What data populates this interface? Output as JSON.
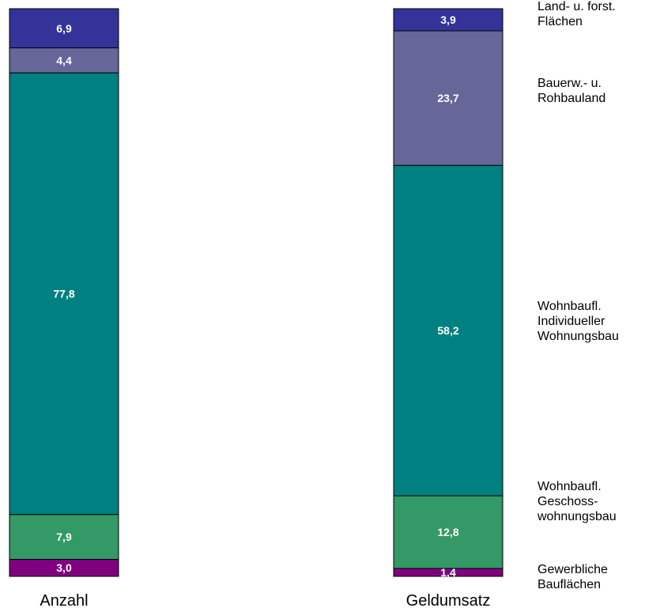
{
  "chart_data": {
    "type": "bar",
    "stacked": true,
    "normalized_to_100": true,
    "categories": [
      "Anzahl",
      "Geldumsatz"
    ],
    "series": [
      {
        "name": "Gewerbliche Bauflächen",
        "legend_lines": [
          "Gewerbliche",
          "Bauflächen"
        ],
        "color": "#800080",
        "values": [
          3.0,
          1.4
        ],
        "labels": [
          "3,0",
          "1,4"
        ]
      },
      {
        "name": "Wohnbaufl. Geschosswohnungsbau",
        "legend_lines": [
          "Wohnbaufl.",
          "Geschoss-",
          "wohnungsbau"
        ],
        "color": "#339966",
        "values": [
          7.9,
          12.8
        ],
        "labels": [
          "7,9",
          "12,8"
        ]
      },
      {
        "name": "Wohnbaufl. Individueller Wohnungsbau",
        "legend_lines": [
          "Wohnbaufl.",
          "Individueller",
          "Wohnungsbau"
        ],
        "color": "#008080",
        "values": [
          77.8,
          58.2
        ],
        "labels": [
          "77,8",
          "58,2"
        ]
      },
      {
        "name": "Bauerw.- u. Rohbauland",
        "legend_lines": [
          "Bauerw.- u.",
          "Rohbauland"
        ],
        "color": "#666699",
        "values": [
          4.4,
          23.7
        ],
        "labels": [
          "4,4",
          "23,7"
        ]
      },
      {
        "name": "Land- u. forst. Flächen",
        "legend_lines": [
          "Land- u. forst.",
          "Flächen"
        ],
        "color": "#333399",
        "values": [
          6.9,
          3.9
        ],
        "labels": [
          "6,9",
          "3,9"
        ]
      }
    ],
    "legend_position": "right",
    "grid": false,
    "axes_visible": false
  }
}
